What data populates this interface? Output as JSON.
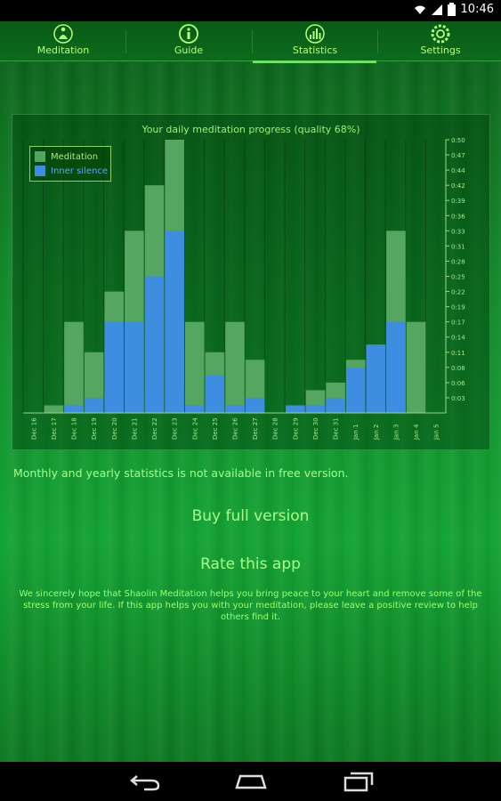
{
  "status_bar": {
    "time": "10:46",
    "icons": [
      "wifi-icon",
      "signal-icon",
      "battery-icon"
    ]
  },
  "tabs": [
    {
      "label": "Meditation",
      "icon": "meditation-icon"
    },
    {
      "label": "Guide",
      "icon": "info-icon"
    },
    {
      "label": "Statistics",
      "icon": "statistics-icon",
      "selected": true
    },
    {
      "label": "Settings",
      "icon": "settings-icon"
    }
  ],
  "chart_data": {
    "type": "bar",
    "title": "Your daily meditation progress (quality 68%)",
    "categories": [
      "Dec 16",
      "Dec 17",
      "Dec 18",
      "Dec 19",
      "Dec 20",
      "Dec 21",
      "Dec 22",
      "Dec 23",
      "Dec 24",
      "Dec 25",
      "Dec 26",
      "Dec 27",
      "Dec 28",
      "Dec 29",
      "Dec 30",
      "Dec 31",
      "Jan 1",
      "Jan 2",
      "Jan 3",
      "Jan 4",
      "Jan 5"
    ],
    "series": [
      {
        "name": "Meditation",
        "color": "#55a660",
        "values": [
          0,
          1,
          12,
          8,
          16,
          24,
          30,
          36,
          12,
          8,
          12,
          7,
          0,
          1,
          3,
          4,
          7,
          9,
          24,
          12,
          0
        ]
      },
      {
        "name": "Inner silence",
        "color": "#3d8de0",
        "values": [
          0,
          0,
          1,
          2,
          12,
          12,
          18,
          24,
          1,
          5,
          1,
          2,
          0,
          1,
          1,
          2,
          6,
          9,
          12,
          0,
          0
        ]
      }
    ],
    "y_ticks": [
      "0:03",
      "0:06",
      "0:08",
      "0:11",
      "0:14",
      "0:17",
      "0:19",
      "0:22",
      "0:25",
      "0:28",
      "0:31",
      "0:33",
      "0:36",
      "0:39",
      "0:42",
      "0:44",
      "0:47",
      "0:50"
    ],
    "ylim": [
      0,
      36
    ],
    "legend": "top-left",
    "grid": false
  },
  "messages": {
    "free_version": "Monthly and yearly statistics is not available in free version.",
    "buy": "Buy full version",
    "rate": "Rate this app",
    "hope": "We sincerely hope that Shaolin Meditation helps you bring peace to your heart and remove some of the stress from your life. If this app helps you with your meditation, please leave a positive review to help others find it."
  },
  "nav_bar": {
    "buttons": [
      "back-icon",
      "home-icon",
      "recents-icon"
    ]
  }
}
